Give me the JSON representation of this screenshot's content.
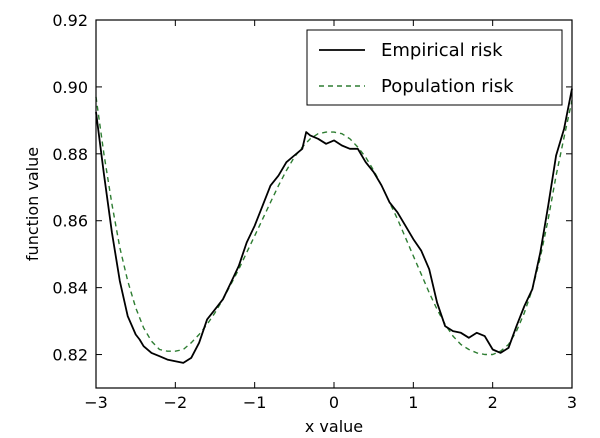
{
  "chart_data": {
    "type": "line",
    "xlabel": "x value",
    "ylabel": "function value",
    "xlim": [
      -3,
      3
    ],
    "ylim": [
      0.81,
      0.92
    ],
    "x_ticks": [
      -3,
      -2,
      -1,
      0,
      1,
      2,
      3
    ],
    "x_tick_labels": [
      "−3",
      "−2",
      "−1",
      "0",
      "1",
      "2",
      "3"
    ],
    "y_ticks": [
      0.82,
      0.84,
      0.86,
      0.88,
      0.9,
      0.92
    ],
    "y_tick_labels": [
      "0.82",
      "0.84",
      "0.86",
      "0.88",
      "0.90",
      "0.92"
    ],
    "grid": false,
    "legend_position": "top-right",
    "series": [
      {
        "name": "Empirical risk",
        "style": "solid",
        "color": "#000000",
        "x": [
          -3.0,
          -2.9,
          -2.8,
          -2.7,
          -2.6,
          -2.5,
          -2.45,
          -2.4,
          -2.3,
          -2.2,
          -2.1,
          -2.0,
          -1.9,
          -1.8,
          -1.7,
          -1.6,
          -1.5,
          -1.4,
          -1.3,
          -1.2,
          -1.1,
          -1.0,
          -0.9,
          -0.8,
          -0.7,
          -0.6,
          -0.5,
          -0.4,
          -0.35,
          -0.3,
          -0.2,
          -0.1,
          0.0,
          0.1,
          0.2,
          0.3,
          0.4,
          0.5,
          0.6,
          0.7,
          0.8,
          0.9,
          1.0,
          1.1,
          1.2,
          1.3,
          1.4,
          1.5,
          1.6,
          1.7,
          1.8,
          1.9,
          2.0,
          2.1,
          2.2,
          2.3,
          2.4,
          2.5,
          2.6,
          2.7,
          2.8,
          2.9,
          3.0
        ],
        "y": [
          0.8925,
          0.874,
          0.8565,
          0.842,
          0.8315,
          0.826,
          0.8245,
          0.8225,
          0.8205,
          0.8195,
          0.8185,
          0.818,
          0.8175,
          0.819,
          0.8235,
          0.8305,
          0.8335,
          0.8365,
          0.8415,
          0.8465,
          0.8535,
          0.8585,
          0.8645,
          0.8705,
          0.8735,
          0.8775,
          0.8795,
          0.8815,
          0.8865,
          0.8855,
          0.8845,
          0.883,
          0.884,
          0.8825,
          0.8815,
          0.8815,
          0.8775,
          0.8745,
          0.8705,
          0.8655,
          0.8625,
          0.8585,
          0.8545,
          0.851,
          0.8455,
          0.8355,
          0.8285,
          0.827,
          0.8265,
          0.825,
          0.8265,
          0.8255,
          0.8215,
          0.8205,
          0.822,
          0.8285,
          0.8345,
          0.8395,
          0.8505,
          0.8645,
          0.8795,
          0.8875,
          0.8995
        ]
      },
      {
        "name": "Population risk",
        "style": "dashed",
        "color": "#2e7d32",
        "x": [
          -3.0,
          -2.9,
          -2.8,
          -2.7,
          -2.6,
          -2.5,
          -2.4,
          -2.3,
          -2.2,
          -2.1,
          -2.0,
          -1.9,
          -1.8,
          -1.7,
          -1.6,
          -1.5,
          -1.4,
          -1.3,
          -1.2,
          -1.1,
          -1.0,
          -0.9,
          -0.8,
          -0.7,
          -0.6,
          -0.5,
          -0.4,
          -0.3,
          -0.2,
          -0.1,
          0.0,
          0.1,
          0.2,
          0.3,
          0.4,
          0.5,
          0.6,
          0.7,
          0.8,
          0.9,
          1.0,
          1.1,
          1.2,
          1.3,
          1.4,
          1.5,
          1.6,
          1.7,
          1.8,
          1.9,
          2.0,
          2.1,
          2.2,
          2.3,
          2.4,
          2.5,
          2.6,
          2.7,
          2.8,
          2.9,
          3.0
        ],
        "y": [
          0.897,
          0.88,
          0.865,
          0.852,
          0.842,
          0.834,
          0.828,
          0.824,
          0.8215,
          0.821,
          0.821,
          0.8215,
          0.8235,
          0.826,
          0.829,
          0.8325,
          0.8365,
          0.841,
          0.8455,
          0.8505,
          0.8555,
          0.8605,
          0.8655,
          0.8705,
          0.875,
          0.879,
          0.882,
          0.8845,
          0.886,
          0.8865,
          0.8865,
          0.886,
          0.8845,
          0.882,
          0.879,
          0.875,
          0.8705,
          0.8655,
          0.8605,
          0.855,
          0.8495,
          0.844,
          0.8385,
          0.8335,
          0.829,
          0.8255,
          0.823,
          0.8215,
          0.8205,
          0.82,
          0.82,
          0.821,
          0.823,
          0.827,
          0.8325,
          0.8395,
          0.849,
          0.8605,
          0.8735,
          0.885,
          0.896
        ]
      }
    ]
  }
}
